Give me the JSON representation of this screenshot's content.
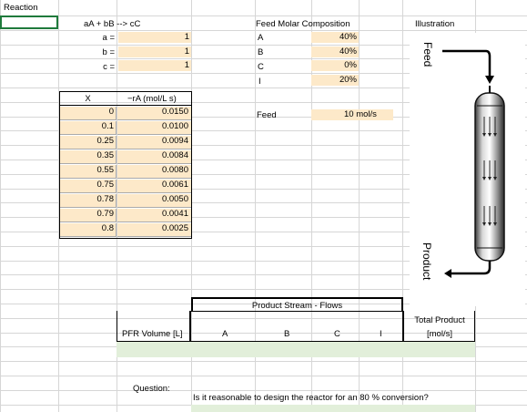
{
  "sheet": {
    "title": "Reaction",
    "reaction": "aA + bB --> cC",
    "coefficients": [
      {
        "label": "a =",
        "value": "1"
      },
      {
        "label": "b =",
        "value": "1"
      },
      {
        "label": "c =",
        "value": "1"
      }
    ],
    "feed_composition": {
      "header": "Feed Molar Composition",
      "rows": [
        {
          "species": "A",
          "value": "40%"
        },
        {
          "species": "B",
          "value": "40%"
        },
        {
          "species": "C",
          "value": "0%"
        },
        {
          "species": "I",
          "value": "20%"
        }
      ]
    },
    "feed": {
      "label": "Feed",
      "value": "10 mol/s"
    },
    "illustration": {
      "header": "Illustration",
      "feed_label": "Feed",
      "product_label": "Product"
    },
    "rate_table": {
      "col_x": "X",
      "col_r": "−rA (mol/L s)",
      "rows": [
        {
          "x": "0",
          "r": "0.0150"
        },
        {
          "x": "0.1",
          "r": "0.0100"
        },
        {
          "x": "0.25",
          "r": "0.0094"
        },
        {
          "x": "0.35",
          "r": "0.0084"
        },
        {
          "x": "0.55",
          "r": "0.0080"
        },
        {
          "x": "0.75",
          "r": "0.0061"
        },
        {
          "x": "0.78",
          "r": "0.0050"
        },
        {
          "x": "0.79",
          "r": "0.0041"
        },
        {
          "x": "0.8",
          "r": "0.0025"
        }
      ]
    },
    "product": {
      "header": "Product Stream - Flows",
      "pfr_label": "PFR Volume [L]",
      "cols": [
        "A",
        "B",
        "C",
        "I"
      ],
      "total_label_1": "Total Product",
      "total_label_2": "[mol/s]"
    },
    "question": {
      "label": "Question:",
      "text": "Is it reasonable to design the reactor for an 80 % conversion?"
    }
  }
}
